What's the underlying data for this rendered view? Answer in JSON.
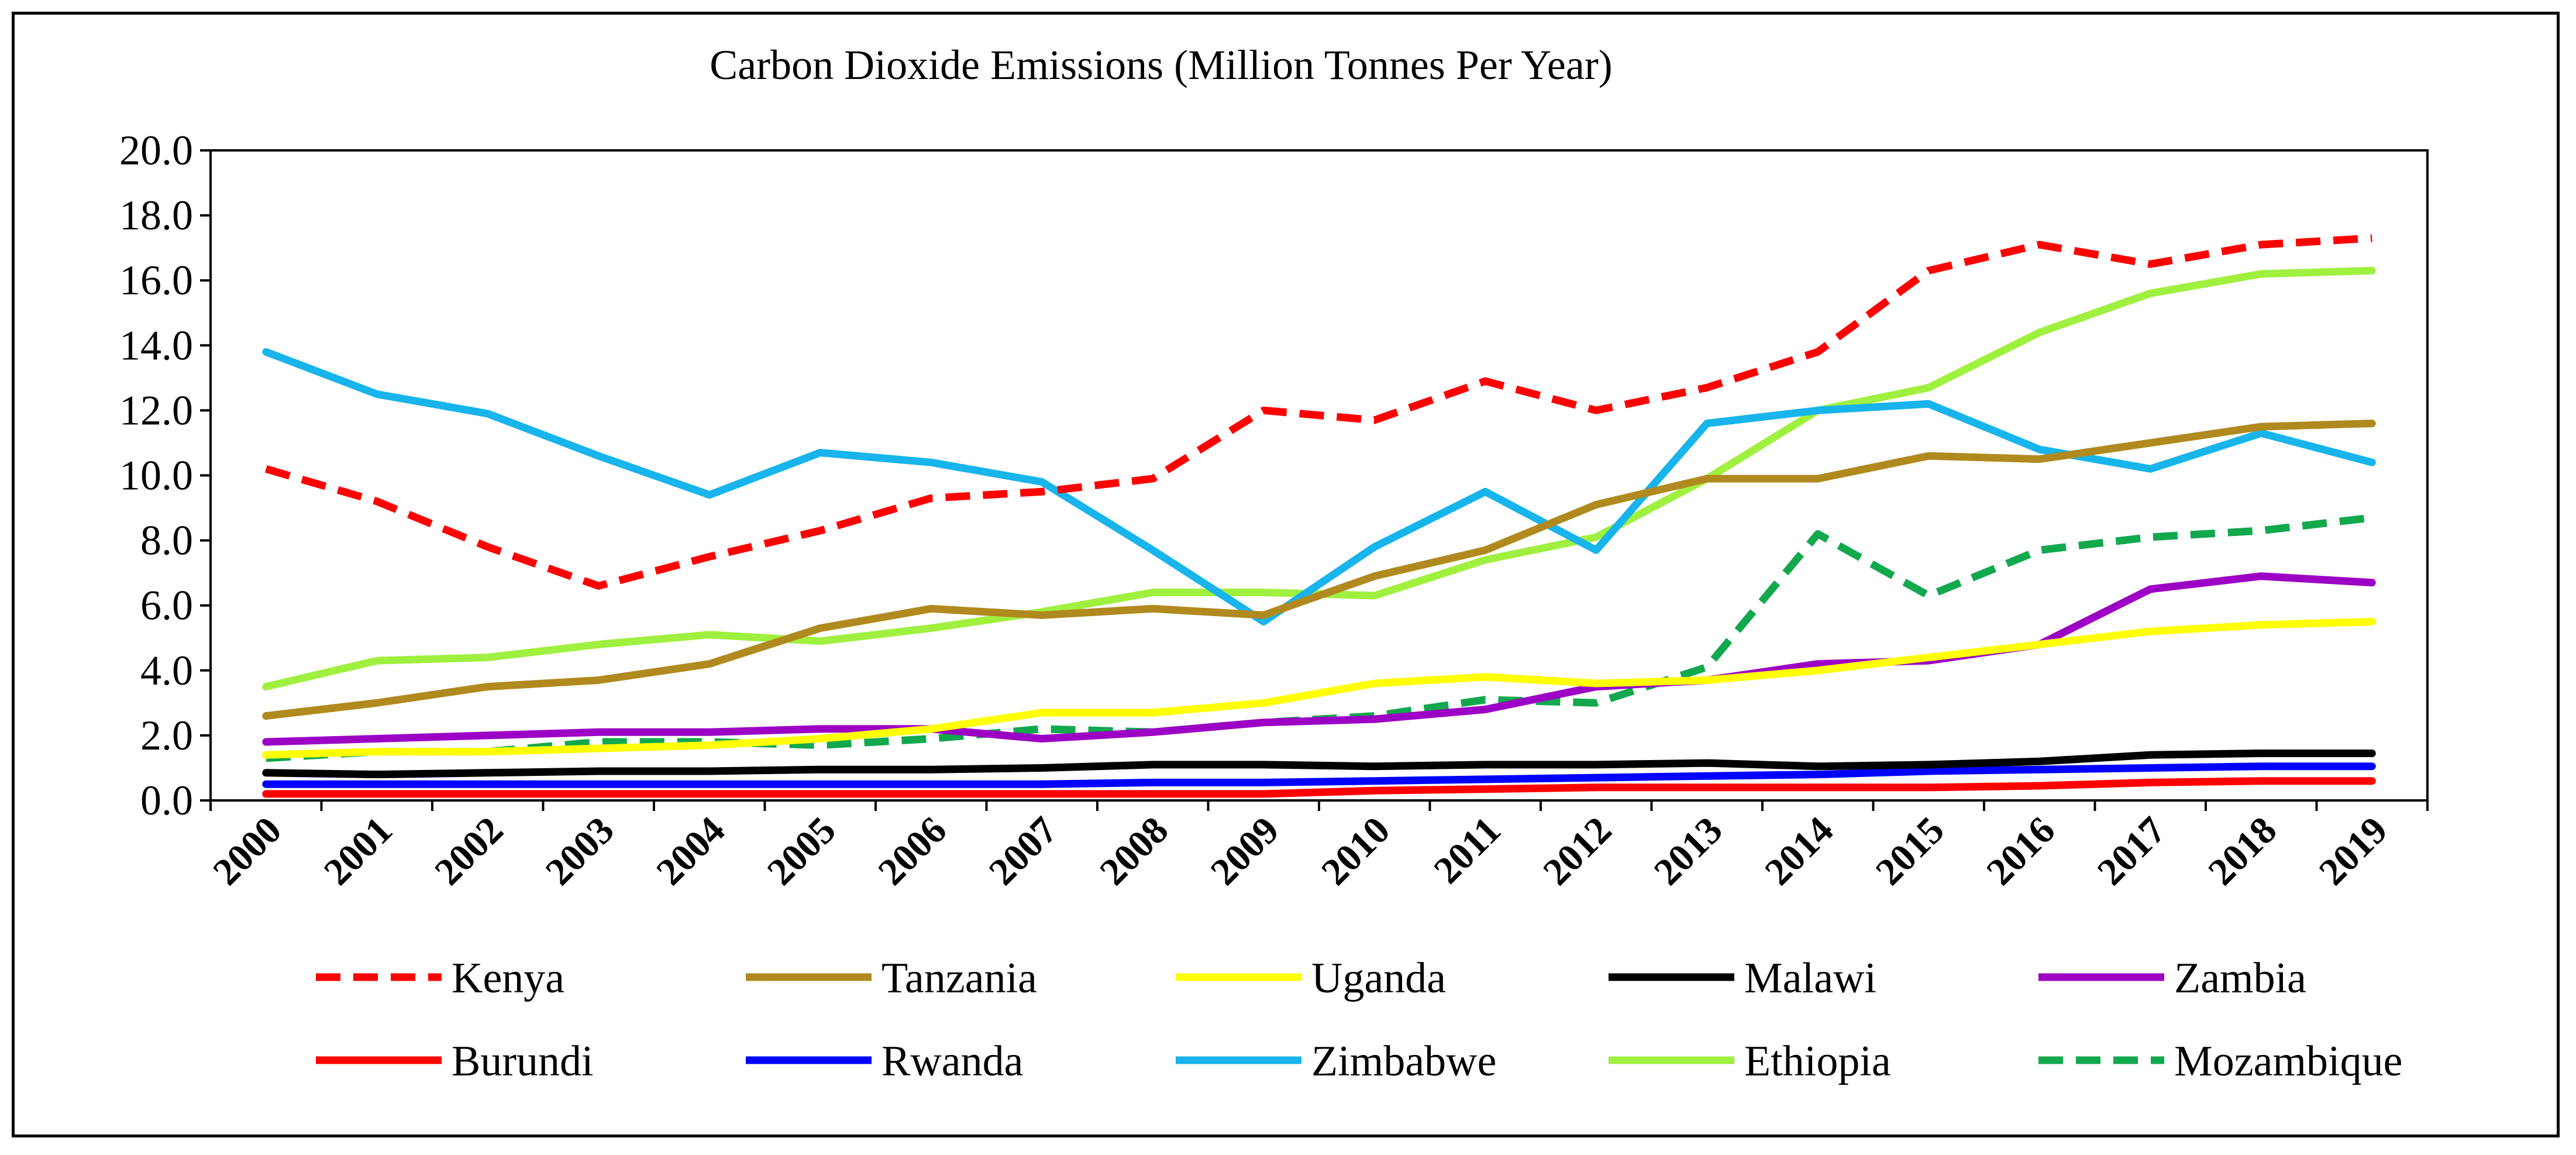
{
  "chart_data": {
    "type": "line",
    "title": "Carbon Dioxide Emissions (Million Tonnes Per Year)",
    "xlabel": "",
    "ylabel": "",
    "ylim": [
      0,
      20
    ],
    "y_ticks": [
      "0.0",
      "2.0",
      "4.0",
      "6.0",
      "8.0",
      "10.0",
      "12.0",
      "14.0",
      "16.0",
      "18.0",
      "20.0"
    ],
    "grid": false,
    "legend_position": "bottom",
    "categories": [
      "2000",
      "2001",
      "2002",
      "2003",
      "2004",
      "2005",
      "2006",
      "2007",
      "2008",
      "2009",
      "2010",
      "2011",
      "2012",
      "2013",
      "2014",
      "2015",
      "2016",
      "2017",
      "2018",
      "2019"
    ],
    "series": [
      {
        "name": "Kenya",
        "color": "#ff0000",
        "dash": true,
        "values": [
          10.2,
          9.2,
          7.8,
          6.6,
          7.5,
          8.3,
          9.3,
          9.5,
          9.9,
          12.0,
          11.7,
          12.9,
          12.0,
          12.7,
          13.8,
          16.3,
          17.1,
          16.5,
          17.1,
          17.3
        ]
      },
      {
        "name": "Tanzania",
        "color": "#b08a1e",
        "dash": false,
        "values": [
          2.6,
          3.0,
          3.5,
          3.7,
          4.2,
          5.3,
          5.9,
          5.7,
          5.9,
          5.7,
          6.9,
          7.7,
          9.1,
          9.9,
          9.9,
          10.6,
          10.5,
          11.0,
          11.5,
          11.6
        ]
      },
      {
        "name": "Uganda",
        "color": "#ffff00",
        "dash": false,
        "values": [
          1.4,
          1.5,
          1.5,
          1.6,
          1.7,
          1.9,
          2.2,
          2.7,
          2.7,
          3.0,
          3.6,
          3.8,
          3.6,
          3.7,
          4.0,
          4.4,
          4.8,
          5.2,
          5.4,
          5.5
        ]
      },
      {
        "name": "Malawi",
        "color": "#000000",
        "dash": false,
        "values": [
          0.85,
          0.8,
          0.85,
          0.9,
          0.9,
          0.95,
          0.95,
          1.0,
          1.1,
          1.1,
          1.05,
          1.1,
          1.1,
          1.15,
          1.05,
          1.1,
          1.2,
          1.4,
          1.45,
          1.45
        ]
      },
      {
        "name": "Zambia",
        "color": "#9c00c4",
        "dash": false,
        "values": [
          1.8,
          1.9,
          2.0,
          2.1,
          2.1,
          2.2,
          2.2,
          1.9,
          2.1,
          2.4,
          2.5,
          2.8,
          3.5,
          3.7,
          4.2,
          4.3,
          4.8,
          6.5,
          6.9,
          6.7
        ]
      },
      {
        "name": "Burundi",
        "color": "#ff0000",
        "dash": false,
        "values": [
          0.2,
          0.2,
          0.2,
          0.2,
          0.2,
          0.2,
          0.2,
          0.2,
          0.2,
          0.2,
          0.3,
          0.35,
          0.4,
          0.4,
          0.4,
          0.4,
          0.45,
          0.55,
          0.6,
          0.6
        ]
      },
      {
        "name": "Rwanda",
        "color": "#0000ff",
        "dash": false,
        "values": [
          0.5,
          0.5,
          0.5,
          0.5,
          0.5,
          0.5,
          0.5,
          0.5,
          0.55,
          0.55,
          0.6,
          0.65,
          0.7,
          0.75,
          0.8,
          0.9,
          0.95,
          1.0,
          1.05,
          1.05
        ]
      },
      {
        "name": "Zimbabwe",
        "color": "#18b4ec",
        "dash": false,
        "values": [
          13.8,
          12.5,
          11.9,
          10.6,
          9.4,
          10.7,
          10.4,
          9.8,
          7.7,
          5.5,
          7.8,
          9.5,
          7.7,
          11.6,
          12.0,
          12.2,
          10.8,
          10.2,
          11.3,
          10.4
        ]
      },
      {
        "name": "Ethiopia",
        "color": "#a0f040",
        "dash": false,
        "values": [
          3.5,
          4.3,
          4.4,
          4.8,
          5.1,
          4.9,
          5.3,
          5.8,
          6.4,
          6.4,
          6.3,
          7.4,
          8.1,
          9.9,
          12.0,
          12.7,
          14.4,
          15.6,
          16.2,
          16.3
        ]
      },
      {
        "name": "Mozambique",
        "color": "#12a84e",
        "dash": true,
        "values": [
          1.3,
          1.5,
          1.5,
          1.8,
          1.8,
          1.7,
          1.9,
          2.2,
          2.1,
          2.4,
          2.6,
          3.1,
          3.0,
          4.1,
          8.2,
          6.3,
          7.7,
          8.1,
          8.3,
          8.7
        ]
      }
    ]
  }
}
